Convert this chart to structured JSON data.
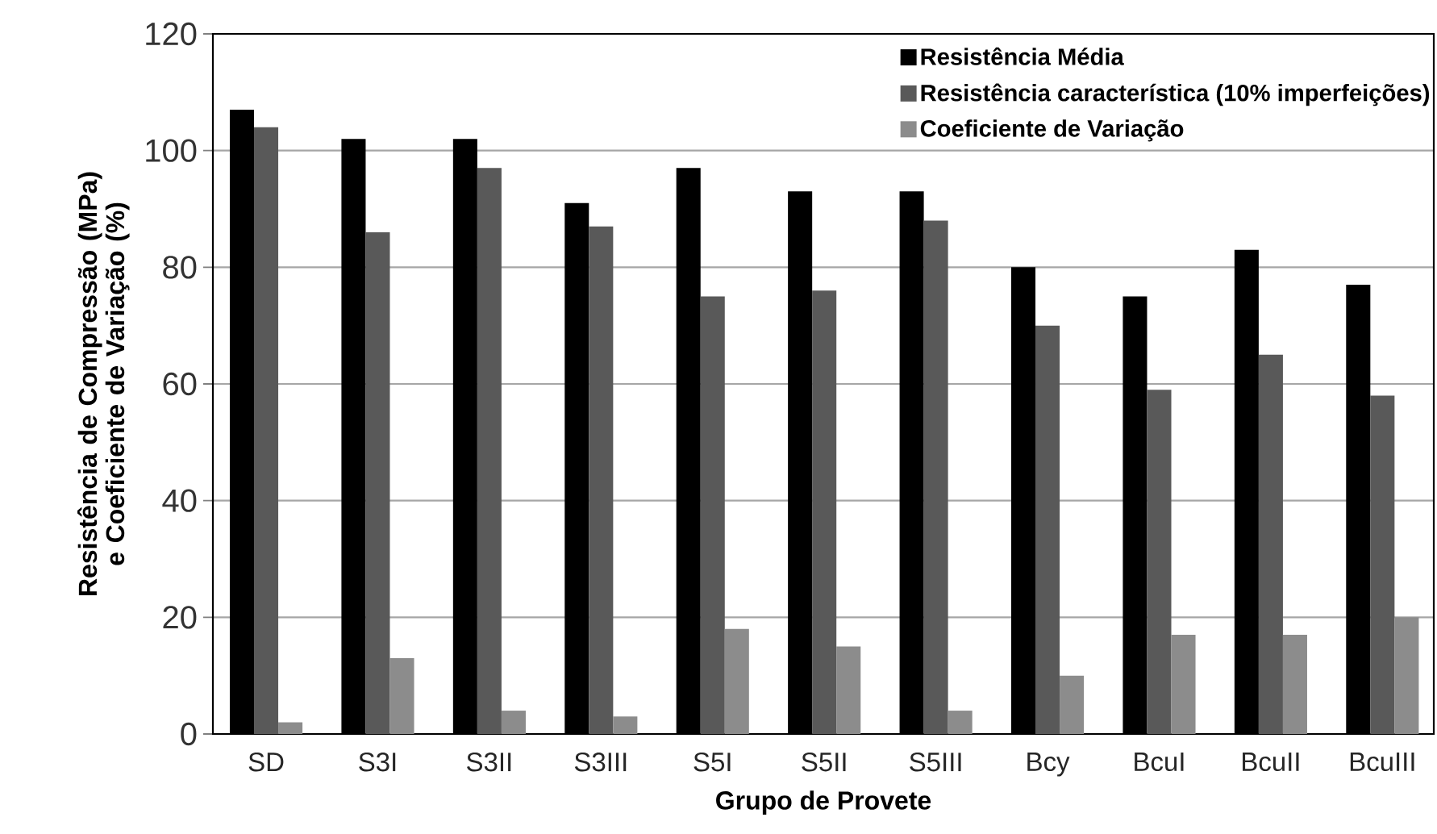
{
  "chart_data": {
    "type": "bar",
    "xlabel": "Grupo de Provete",
    "ylabel": "Resistência de Compressão (MPa) e Coeficiente de Variação (%)",
    "categories": [
      "SD",
      "S3I",
      "S3II",
      "S3III",
      "S5I",
      "S5II",
      "S5III",
      "Bcy",
      "BcuI",
      "BcuII",
      "BcuIII"
    ],
    "series": [
      {
        "name": "Resistência Média",
        "color": "#000000",
        "values": [
          107,
          102,
          102,
          91,
          97,
          93,
          93,
          80,
          75,
          83,
          77
        ]
      },
      {
        "name": "Resistência característica (10% imperfeições)",
        "color": "#595959",
        "values": [
          104,
          86,
          97,
          87,
          75,
          76,
          88,
          70,
          59,
          65,
          58
        ]
      },
      {
        "name": "Coeficiente de Variação",
        "color": "#8c8c8c",
        "values": [
          2,
          13,
          4,
          3,
          18,
          15,
          4,
          10,
          17,
          17,
          20
        ]
      }
    ],
    "ylim": [
      0,
      120
    ],
    "yticks": [
      0,
      20,
      40,
      60,
      80,
      100,
      120
    ],
    "grid": "y",
    "legend": "top right"
  }
}
